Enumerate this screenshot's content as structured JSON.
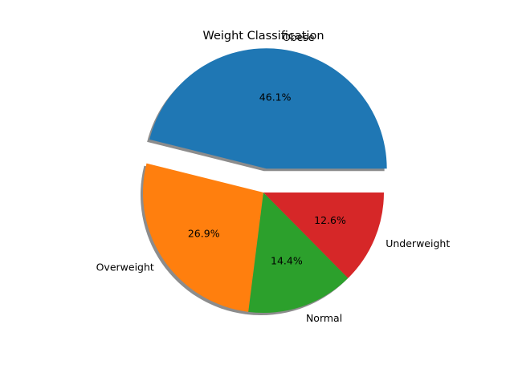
{
  "chart_data": {
    "type": "pie",
    "title": "Weight Classification",
    "categories": [
      "Obese",
      "Overweight",
      "Normal",
      "Underweight"
    ],
    "values": [
      46.1,
      26.9,
      14.4,
      12.6
    ],
    "value_labels": [
      "46.1%",
      "26.9%",
      "14.4%",
      "12.6%"
    ],
    "colors": [
      "#1f77b4",
      "#ff7f0e",
      "#2ca02c",
      "#d62728"
    ],
    "explode": [
      0.2,
      0,
      0,
      0
    ],
    "shadow": true,
    "start_angle_deg": 0,
    "direction": "counterclockwise"
  }
}
